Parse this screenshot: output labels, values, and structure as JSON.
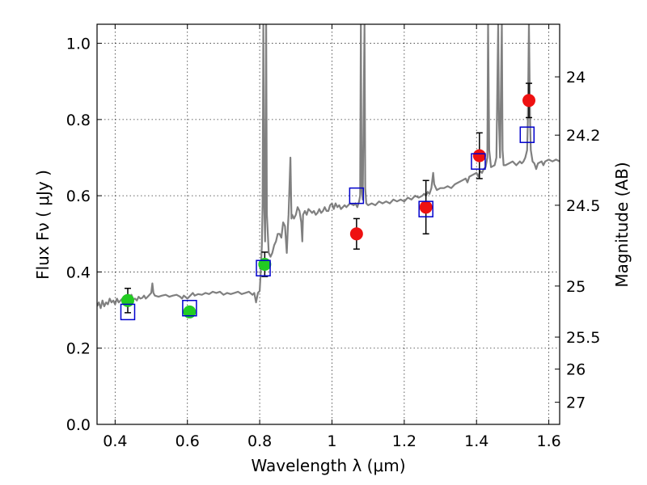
{
  "chart_data": {
    "type": "scatter",
    "title": "",
    "xlabel": "Wavelength  λ (μm)",
    "ylabel": "Flux  Fν  ( μJy )",
    "y2label": "Magnitude (AB)",
    "xlim": [
      0.35,
      1.63
    ],
    "ylim": [
      0.0,
      1.05
    ],
    "grid": true,
    "x_ticks": [
      "0.4",
      "0.6",
      "0.8",
      "1",
      "1.2",
      "1.4",
      "1.6"
    ],
    "x_tick_values": [
      0.4,
      0.6,
      0.8,
      1.0,
      1.2,
      1.4,
      1.6
    ],
    "y_ticks": [
      "0.0",
      "0.2",
      "0.4",
      "0.6",
      "0.8",
      "1.0"
    ],
    "y_tick_values": [
      0.0,
      0.2,
      0.4,
      0.6,
      0.8,
      1.0
    ],
    "y2_ticks": [
      "24",
      "24.2",
      "24.5",
      "25",
      "25.5",
      "26",
      "27"
    ],
    "y2_tick_flux": [
      0.912,
      0.759,
      0.575,
      0.363,
      0.229,
      0.145,
      0.058
    ],
    "spectrum": {
      "color": "#808080",
      "points": [
        [
          0.35,
          0.31
        ],
        [
          0.355,
          0.32
        ],
        [
          0.36,
          0.305
        ],
        [
          0.365,
          0.325
        ],
        [
          0.37,
          0.31
        ],
        [
          0.375,
          0.32
        ],
        [
          0.38,
          0.315
        ],
        [
          0.385,
          0.33
        ],
        [
          0.39,
          0.32
        ],
        [
          0.395,
          0.325
        ],
        [
          0.4,
          0.315
        ],
        [
          0.405,
          0.33
        ],
        [
          0.41,
          0.32
        ],
        [
          0.415,
          0.325
        ],
        [
          0.42,
          0.33
        ],
        [
          0.425,
          0.322
        ],
        [
          0.43,
          0.335
        ],
        [
          0.435,
          0.325
        ],
        [
          0.44,
          0.33
        ],
        [
          0.445,
          0.34
        ],
        [
          0.45,
          0.328
        ],
        [
          0.455,
          0.33
        ],
        [
          0.46,
          0.325
        ],
        [
          0.465,
          0.335
        ],
        [
          0.47,
          0.33
        ],
        [
          0.475,
          0.332
        ],
        [
          0.48,
          0.338
        ],
        [
          0.485,
          0.33
        ],
        [
          0.49,
          0.335
        ],
        [
          0.495,
          0.34
        ],
        [
          0.5,
          0.345
        ],
        [
          0.503,
          0.37
        ],
        [
          0.506,
          0.345
        ],
        [
          0.51,
          0.338
        ],
        [
          0.52,
          0.335
        ],
        [
          0.53,
          0.338
        ],
        [
          0.54,
          0.34
        ],
        [
          0.55,
          0.335
        ],
        [
          0.56,
          0.338
        ],
        [
          0.57,
          0.34
        ],
        [
          0.58,
          0.335
        ],
        [
          0.585,
          0.33
        ],
        [
          0.59,
          0.338
        ],
        [
          0.595,
          0.334
        ],
        [
          0.6,
          0.33
        ],
        [
          0.605,
          0.335
        ],
        [
          0.61,
          0.34
        ],
        [
          0.615,
          0.345
        ],
        [
          0.62,
          0.338
        ],
        [
          0.63,
          0.342
        ],
        [
          0.64,
          0.34
        ],
        [
          0.65,
          0.345
        ],
        [
          0.66,
          0.342
        ],
        [
          0.67,
          0.348
        ],
        [
          0.68,
          0.345
        ],
        [
          0.69,
          0.348
        ],
        [
          0.7,
          0.34
        ],
        [
          0.71,
          0.345
        ],
        [
          0.72,
          0.342
        ],
        [
          0.73,
          0.345
        ],
        [
          0.74,
          0.348
        ],
        [
          0.75,
          0.342
        ],
        [
          0.76,
          0.345
        ],
        [
          0.77,
          0.348
        ],
        [
          0.78,
          0.34
        ],
        [
          0.785,
          0.345
        ],
        [
          0.79,
          0.32
        ],
        [
          0.795,
          0.345
        ],
        [
          0.8,
          0.35
        ],
        [
          0.803,
          0.4
        ],
        [
          0.806,
          0.47
        ],
        [
          0.808,
          0.58
        ],
        [
          0.81,
          1.05
        ],
        [
          0.812,
          0.6
        ],
        [
          0.815,
          0.48
        ],
        [
          0.818,
          1.05
        ],
        [
          0.82,
          0.55
        ],
        [
          0.825,
          0.45
        ],
        [
          0.83,
          0.44
        ],
        [
          0.835,
          0.45
        ],
        [
          0.84,
          0.47
        ],
        [
          0.845,
          0.48
        ],
        [
          0.85,
          0.5
        ],
        [
          0.855,
          0.5
        ],
        [
          0.86,
          0.49
        ],
        [
          0.865,
          0.53
        ],
        [
          0.87,
          0.52
        ],
        [
          0.875,
          0.45
        ],
        [
          0.878,
          0.52
        ],
        [
          0.88,
          0.55
        ],
        [
          0.885,
          0.7
        ],
        [
          0.888,
          0.54
        ],
        [
          0.89,
          0.55
        ],
        [
          0.895,
          0.54
        ],
        [
          0.9,
          0.55
        ],
        [
          0.905,
          0.57
        ],
        [
          0.91,
          0.56
        ],
        [
          0.915,
          0.53
        ],
        [
          0.918,
          0.48
        ],
        [
          0.92,
          0.55
        ],
        [
          0.925,
          0.56
        ],
        [
          0.93,
          0.55
        ],
        [
          0.935,
          0.565
        ],
        [
          0.94,
          0.56
        ],
        [
          0.945,
          0.555
        ],
        [
          0.95,
          0.56
        ],
        [
          0.955,
          0.55
        ],
        [
          0.96,
          0.555
        ],
        [
          0.965,
          0.565
        ],
        [
          0.97,
          0.555
        ],
        [
          0.975,
          0.56
        ],
        [
          0.98,
          0.57
        ],
        [
          0.985,
          0.56
        ],
        [
          0.99,
          0.56
        ],
        [
          0.995,
          0.575
        ],
        [
          1.0,
          0.58
        ],
        [
          1.005,
          0.565
        ],
        [
          1.01,
          0.58
        ],
        [
          1.015,
          0.57
        ],
        [
          1.02,
          0.575
        ],
        [
          1.025,
          0.565
        ],
        [
          1.03,
          0.57
        ],
        [
          1.035,
          0.575
        ],
        [
          1.04,
          0.57
        ],
        [
          1.045,
          0.575
        ],
        [
          1.05,
          0.58
        ],
        [
          1.06,
          0.575
        ],
        [
          1.065,
          0.58
        ],
        [
          1.07,
          0.57
        ],
        [
          1.075,
          0.585
        ],
        [
          1.078,
          0.6
        ],
        [
          1.08,
          1.05
        ],
        [
          1.082,
          0.62
        ],
        [
          1.085,
          0.59
        ],
        [
          1.09,
          1.05
        ],
        [
          1.092,
          0.62
        ],
        [
          1.095,
          0.58
        ],
        [
          1.1,
          0.575
        ],
        [
          1.11,
          0.58
        ],
        [
          1.12,
          0.575
        ],
        [
          1.13,
          0.585
        ],
        [
          1.14,
          0.58
        ],
        [
          1.15,
          0.585
        ],
        [
          1.16,
          0.58
        ],
        [
          1.17,
          0.59
        ],
        [
          1.18,
          0.585
        ],
        [
          1.19,
          0.59
        ],
        [
          1.2,
          0.585
        ],
        [
          1.21,
          0.595
        ],
        [
          1.22,
          0.59
        ],
        [
          1.23,
          0.6
        ],
        [
          1.24,
          0.595
        ],
        [
          1.25,
          0.6
        ],
        [
          1.255,
          0.605
        ],
        [
          1.26,
          0.6
        ],
        [
          1.265,
          0.61
        ],
        [
          1.27,
          0.605
        ],
        [
          1.275,
          0.62
        ],
        [
          1.28,
          0.66
        ],
        [
          1.283,
          0.63
        ],
        [
          1.29,
          0.615
        ],
        [
          1.3,
          0.62
        ],
        [
          1.31,
          0.62
        ],
        [
          1.32,
          0.625
        ],
        [
          1.33,
          0.62
        ],
        [
          1.34,
          0.63
        ],
        [
          1.35,
          0.635
        ],
        [
          1.36,
          0.64
        ],
        [
          1.37,
          0.645
        ],
        [
          1.375,
          0.635
        ],
        [
          1.38,
          0.65
        ],
        [
          1.39,
          0.655
        ],
        [
          1.4,
          0.66
        ],
        [
          1.405,
          0.65
        ],
        [
          1.41,
          0.665
        ],
        [
          1.415,
          0.66
        ],
        [
          1.42,
          0.67
        ],
        [
          1.425,
          0.675
        ],
        [
          1.43,
          0.7
        ],
        [
          1.432,
          1.05
        ],
        [
          1.435,
          0.72
        ],
        [
          1.44,
          0.675
        ],
        [
          1.45,
          0.68
        ],
        [
          1.455,
          0.7
        ],
        [
          1.46,
          1.05
        ],
        [
          1.462,
          0.8
        ],
        [
          1.465,
          0.7
        ],
        [
          1.47,
          1.05
        ],
        [
          1.472,
          0.72
        ],
        [
          1.475,
          0.68
        ],
        [
          1.48,
          0.68
        ],
        [
          1.49,
          0.685
        ],
        [
          1.5,
          0.69
        ],
        [
          1.51,
          0.68
        ],
        [
          1.52,
          0.69
        ],
        [
          1.525,
          0.685
        ],
        [
          1.53,
          0.69
        ],
        [
          1.535,
          0.7
        ],
        [
          1.54,
          0.72
        ],
        [
          1.542,
          0.8
        ],
        [
          1.545,
          1.05
        ],
        [
          1.548,
          0.8
        ],
        [
          1.55,
          0.72
        ],
        [
          1.555,
          0.69
        ],
        [
          1.56,
          0.685
        ],
        [
          1.565,
          0.67
        ],
        [
          1.57,
          0.685
        ],
        [
          1.58,
          0.69
        ],
        [
          1.585,
          0.68
        ],
        [
          1.59,
          0.69
        ],
        [
          1.6,
          0.695
        ],
        [
          1.61,
          0.69
        ],
        [
          1.62,
          0.695
        ],
        [
          1.63,
          0.69
        ]
      ]
    },
    "series": [
      {
        "marker": "circle",
        "color": "#22cc22",
        "points": [
          {
            "x": 0.435,
            "y": 0.325,
            "err": 0.032
          },
          {
            "x": 0.606,
            "y": 0.295,
            "err": 0.012
          },
          {
            "x": 0.814,
            "y": 0.42,
            "err": 0.032
          }
        ]
      },
      {
        "marker": "circle",
        "color": "#ee1111",
        "points": [
          {
            "x": 1.068,
            "y": 0.5,
            "err": 0.04
          },
          {
            "x": 1.26,
            "y": 0.57,
            "err": 0.07
          },
          {
            "x": 1.408,
            "y": 0.705,
            "err": 0.06
          },
          {
            "x": 1.545,
            "y": 0.85,
            "err": 0.045
          }
        ]
      },
      {
        "marker": "open-square",
        "color": "#0000cc",
        "points": [
          {
            "x": 0.435,
            "y": 0.295
          },
          {
            "x": 0.606,
            "y": 0.305
          },
          {
            "x": 0.81,
            "y": 0.41
          },
          {
            "x": 1.068,
            "y": 0.6
          },
          {
            "x": 1.26,
            "y": 0.565
          },
          {
            "x": 1.405,
            "y": 0.69
          },
          {
            "x": 1.54,
            "y": 0.76
          }
        ]
      }
    ]
  }
}
